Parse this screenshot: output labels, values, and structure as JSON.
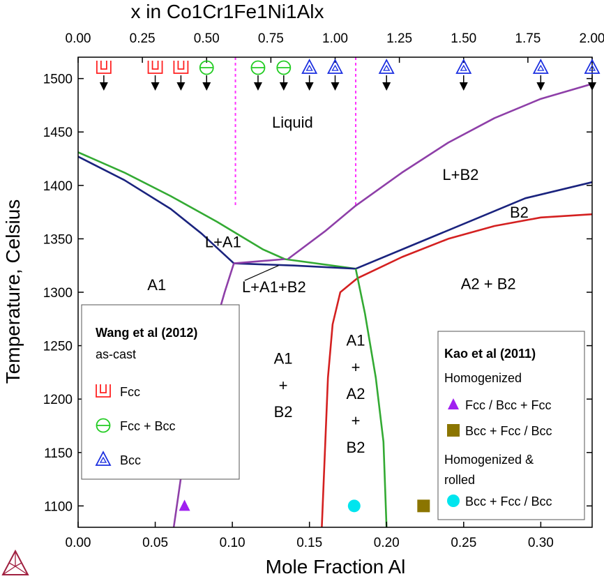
{
  "chart_data": {
    "type": "line",
    "title": "",
    "top_axis_label": "x in Co1Cr1Fe1Ni1Alx",
    "xlabel": "Mole Fraction Al",
    "ylabel": "Temperature, Celsius",
    "xlim": [
      0,
      0.3333
    ],
    "ylim": [
      1080,
      1520
    ],
    "grid": false,
    "x_ticks": [
      0.0,
      0.05,
      0.1,
      0.15,
      0.2,
      0.25,
      0.3
    ],
    "x_tick_labels": [
      "0.00",
      "0.05",
      "0.10",
      "0.15",
      "0.20",
      "0.25",
      "0.30"
    ],
    "y_ticks": [
      1100,
      1150,
      1200,
      1250,
      1300,
      1350,
      1400,
      1450,
      1500
    ],
    "y_tick_labels": [
      "1100",
      "1150",
      "1200",
      "1250",
      "1300",
      "1350",
      "1400",
      "1450",
      "1500"
    ],
    "top_ticks": [
      0,
      0.25,
      0.5,
      0.75,
      1.0,
      1.25,
      1.5,
      1.75,
      2.0
    ],
    "top_tick_labels": [
      "0.00",
      "0.25",
      "0.50",
      "0.75",
      "1.00",
      "1.25",
      "1.50",
      "1.75",
      "2.00"
    ],
    "colors": {
      "liquidus_a1": "#33aa33",
      "solidus_a1": "#1a237e",
      "b2_boundary": "#8e3fa8",
      "a2_boundary": "#d42020",
      "a1_a2_boundary": "#33aa33",
      "vline": "#ff33ff"
    },
    "series": [
      {
        "role": "liquidus_a1",
        "color": "#33aa33",
        "points": [
          [
            0,
            1431
          ],
          [
            0.03,
            1412
          ],
          [
            0.06,
            1390
          ],
          [
            0.09,
            1366
          ],
          [
            0.12,
            1340
          ],
          [
            0.134,
            1331
          ],
          [
            0.18,
            1322
          ]
        ]
      },
      {
        "role": "solidus_a1",
        "color": "#1a237e",
        "points": [
          [
            0,
            1427
          ],
          [
            0.03,
            1405
          ],
          [
            0.06,
            1378
          ],
          [
            0.08,
            1355
          ],
          [
            0.101,
            1327
          ]
        ]
      },
      {
        "role": "three_phase_line",
        "color": "#1a237e",
        "points": [
          [
            0.101,
            1327
          ],
          [
            0.14,
            1325
          ],
          [
            0.18,
            1322
          ]
        ]
      },
      {
        "role": "b2_solvus_upper",
        "color": "#1a237e",
        "points": [
          [
            0.18,
            1322
          ],
          [
            0.22,
            1346
          ],
          [
            0.26,
            1370
          ],
          [
            0.29,
            1388
          ],
          [
            0.3333,
            1403
          ]
        ]
      },
      {
        "role": "b2_liquidus",
        "color": "#8e3fa8",
        "points": [
          [
            0.136,
            1331
          ],
          [
            0.16,
            1357
          ],
          [
            0.18,
            1381
          ],
          [
            0.21,
            1412
          ],
          [
            0.24,
            1440
          ],
          [
            0.27,
            1463
          ],
          [
            0.3,
            1481
          ],
          [
            0.3333,
            1495
          ]
        ]
      },
      {
        "role": "a1_peritectic_link",
        "color": "#8e3fa8",
        "points": [
          [
            0.101,
            1327
          ],
          [
            0.134,
            1331
          ]
        ]
      },
      {
        "role": "a1_b2_solvus",
        "color": "#8e3fa8",
        "points": [
          [
            0.101,
            1327
          ],
          [
            0.095,
            1300
          ],
          [
            0.088,
            1265
          ],
          [
            0.078,
            1210
          ],
          [
            0.07,
            1160
          ],
          [
            0.062,
            1080
          ]
        ]
      },
      {
        "role": "a2_boundary_upper",
        "color": "#d42020",
        "points": [
          [
            0.181,
            1313
          ],
          [
            0.21,
            1333
          ],
          [
            0.24,
            1350
          ],
          [
            0.27,
            1362
          ],
          [
            0.3,
            1370
          ],
          [
            0.3333,
            1373
          ]
        ]
      },
      {
        "role": "a2_boundary_lower",
        "color": "#d42020",
        "points": [
          [
            0.181,
            1313
          ],
          [
            0.17,
            1300
          ],
          [
            0.165,
            1270
          ],
          [
            0.162,
            1220
          ],
          [
            0.16,
            1150
          ],
          [
            0.158,
            1080
          ]
        ]
      },
      {
        "role": "a1_a2_boundary",
        "color": "#33aa33",
        "points": [
          [
            0.18,
            1322
          ],
          [
            0.186,
            1280
          ],
          [
            0.193,
            1220
          ],
          [
            0.198,
            1160
          ],
          [
            0.2,
            1080
          ]
        ]
      }
    ],
    "vlines": [
      {
        "x": 0.102,
        "color": "#ff33ff"
      },
      {
        "x": 0.18,
        "color": "#ff33ff"
      }
    ],
    "region_labels": [
      {
        "text": "Liquid",
        "x": 0.139,
        "y": 1454
      },
      {
        "text": "L+B2",
        "x": 0.248,
        "y": 1405
      },
      {
        "text": "B2",
        "x": 0.286,
        "y": 1370
      },
      {
        "text": "L+A1",
        "x": 0.094,
        "y": 1342
      },
      {
        "text": "A1",
        "x": 0.051,
        "y": 1302
      },
      {
        "text": "L+A1+B2",
        "x": 0.127,
        "y": 1300
      },
      {
        "text": "A2 + B2",
        "x": 0.266,
        "y": 1303
      },
      {
        "text": "A1",
        "x": 0.133,
        "y": 1233
      },
      {
        "text": "+",
        "x": 0.133,
        "y": 1208
      },
      {
        "text": "B2",
        "x": 0.133,
        "y": 1183
      },
      {
        "text": "A1",
        "x": 0.18,
        "y": 1250
      },
      {
        "text": "+",
        "x": 0.18,
        "y": 1225
      },
      {
        "text": "A2",
        "x": 0.18,
        "y": 1200
      },
      {
        "text": "+",
        "x": 0.18,
        "y": 1175
      },
      {
        "text": "B2",
        "x": 0.18,
        "y": 1150
      }
    ],
    "top_markers": [
      {
        "shape": "fcc",
        "color": "#ff2020",
        "x_top": 0.1
      },
      {
        "shape": "fcc",
        "color": "#ff2020",
        "x_top": 0.3
      },
      {
        "shape": "fcc",
        "color": "#ff2020",
        "x_top": 0.4
      },
      {
        "shape": "fccbcc",
        "color": "#22cc22",
        "x_top": 0.5
      },
      {
        "shape": "fccbcc",
        "color": "#22cc22",
        "x_top": 0.7
      },
      {
        "shape": "fccbcc",
        "color": "#22cc22",
        "x_top": 0.8
      },
      {
        "shape": "bcc",
        "color": "#1a2ee0",
        "x_top": 0.9
      },
      {
        "shape": "bcc",
        "color": "#1a2ee0",
        "x_top": 1.0
      },
      {
        "shape": "bcc",
        "color": "#1a2ee0",
        "x_top": 1.2
      },
      {
        "shape": "bcc",
        "color": "#1a2ee0",
        "x_top": 1.5
      },
      {
        "shape": "bcc",
        "color": "#1a2ee0",
        "x_top": 1.8
      },
      {
        "shape": "bcc",
        "color": "#1a2ee0",
        "x_top": 2.0
      }
    ],
    "data_markers": [
      {
        "shape": "triangle",
        "color": "#a020f0",
        "x": 0.069,
        "y": 1100
      },
      {
        "shape": "circle",
        "color": "#00e5ee",
        "x": 0.179,
        "y": 1100
      },
      {
        "shape": "square",
        "color": "#8b7500",
        "x": 0.224,
        "y": 1100
      }
    ],
    "legend_left": {
      "placement": "lower-left",
      "title": "Wang et al (2012)",
      "subtitle": "as-cast",
      "entries": [
        {
          "shape": "fcc",
          "color": "#ff2020",
          "label": "Fcc"
        },
        {
          "shape": "fccbcc",
          "color": "#22cc22",
          "label": "Fcc + Bcc"
        },
        {
          "shape": "bcc",
          "color": "#1a2ee0",
          "label": "Bcc"
        }
      ]
    },
    "legend_right": {
      "placement": "lower-right",
      "title": "Kao et al (2011)",
      "group1": "Homogenized",
      "entries1": [
        {
          "shape": "triangle",
          "color": "#a020f0",
          "label": "Fcc / Bcc + Fcc"
        },
        {
          "shape": "square",
          "color": "#8b7500",
          "label": "Bcc + Fcc / Bcc"
        }
      ],
      "group2_line1": "Homogenized &",
      "group2_line2": "rolled",
      "entries2": [
        {
          "shape": "circle",
          "color": "#00e5ee",
          "label": "Bcc + Fcc / Bcc"
        }
      ]
    },
    "logo_icon": "thermo-calc-triangle-icon"
  }
}
